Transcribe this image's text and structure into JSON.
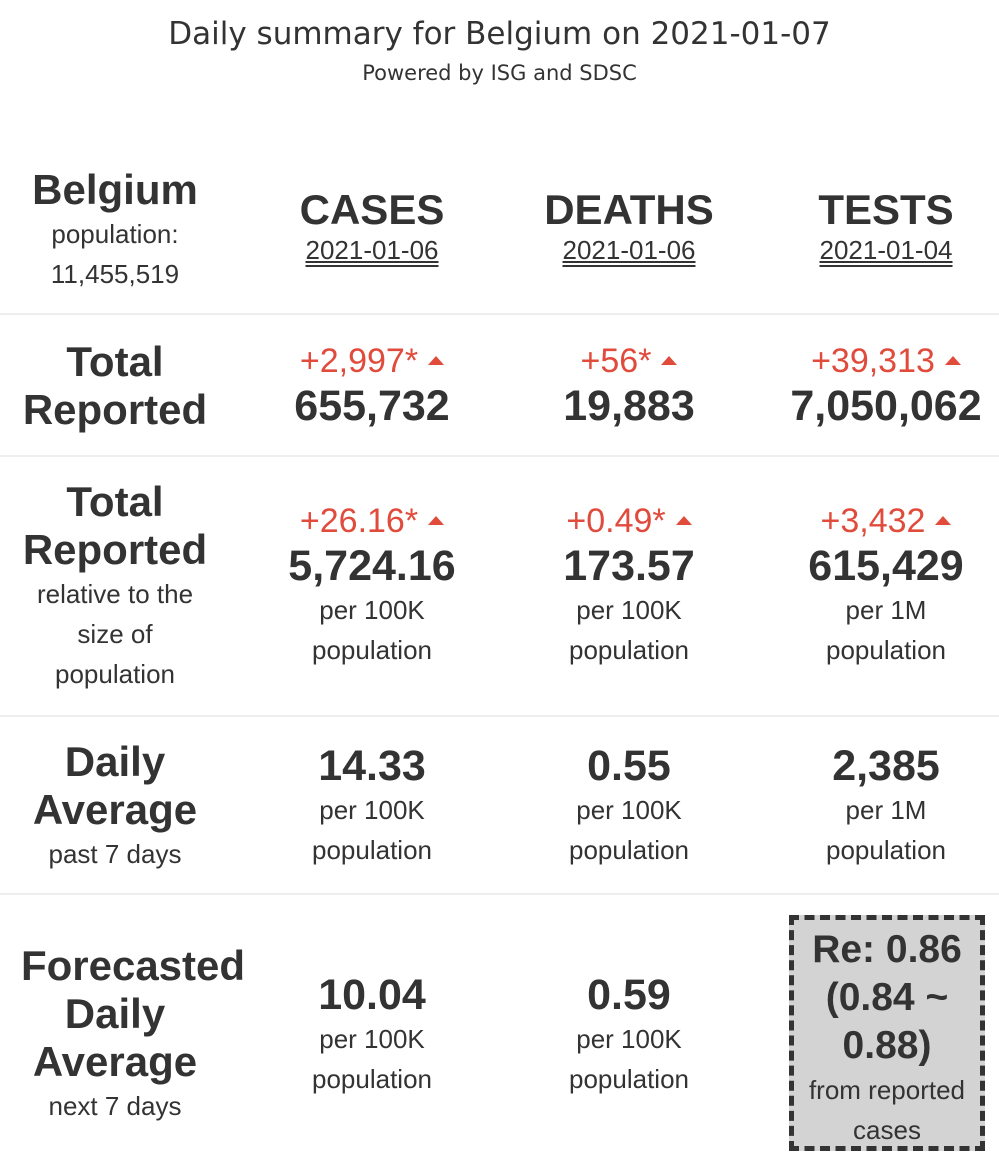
{
  "header": {
    "title": "Daily summary for Belgium on 2021-01-07",
    "subtitle": "Powered by ISG and SDSC"
  },
  "country": {
    "name": "Belgium",
    "population_label": "population:",
    "population_value": "11,455,519"
  },
  "columns": [
    {
      "name": "CASES",
      "date": "2021-01-06"
    },
    {
      "name": "DEATHS",
      "date": "2021-01-06"
    },
    {
      "name": "TESTS",
      "date": "2021-01-04"
    }
  ],
  "total_reported": {
    "label_line1": "Total",
    "label_line2": "Reported",
    "cells": [
      {
        "delta": "+2,997*",
        "value": "655,732"
      },
      {
        "delta": "+56*",
        "value": "19,883"
      },
      {
        "delta": "+39,313",
        "value": "7,050,062"
      }
    ]
  },
  "relative": {
    "label_line1": "Total",
    "label_line2": "Reported",
    "label_sub1": "relative to the",
    "label_sub2": "size of",
    "label_sub3": "population",
    "cells": [
      {
        "delta": "+26.16*",
        "value": "5,724.16",
        "unit1": "per 100K",
        "unit2": "population"
      },
      {
        "delta": "+0.49*",
        "value": "173.57",
        "unit1": "per 100K",
        "unit2": "population"
      },
      {
        "delta": "+3,432",
        "value": "615,429",
        "unit1": "per 1M",
        "unit2": "population"
      }
    ]
  },
  "daily_average": {
    "label_line1": "Daily",
    "label_line2": "Average",
    "label_sub": "past 7 days",
    "cells": [
      {
        "value": "14.33",
        "unit1": "per 100K",
        "unit2": "population"
      },
      {
        "value": "0.55",
        "unit1": "per 100K",
        "unit2": "population"
      },
      {
        "value": "2,385",
        "unit1": "per 1M",
        "unit2": "population"
      }
    ]
  },
  "forecast": {
    "label_line1": "Forecasted",
    "label_line2": "Daily",
    "label_line3": "Average",
    "label_sub": "next 7 days",
    "cells": [
      {
        "value": "10.04",
        "unit1": "per 100K",
        "unit2": "population"
      },
      {
        "value": "0.59",
        "unit1": "per 100K",
        "unit2": "population"
      }
    ],
    "re_box": {
      "line1": "Re: 0.86",
      "line2": "(0.84 ~",
      "line3": "0.88)",
      "sub1": "from reported",
      "sub2": "cases"
    }
  },
  "colors": {
    "delta": "#e04b3c",
    "text": "#333333",
    "re_box_bg": "#d3d3d3"
  }
}
